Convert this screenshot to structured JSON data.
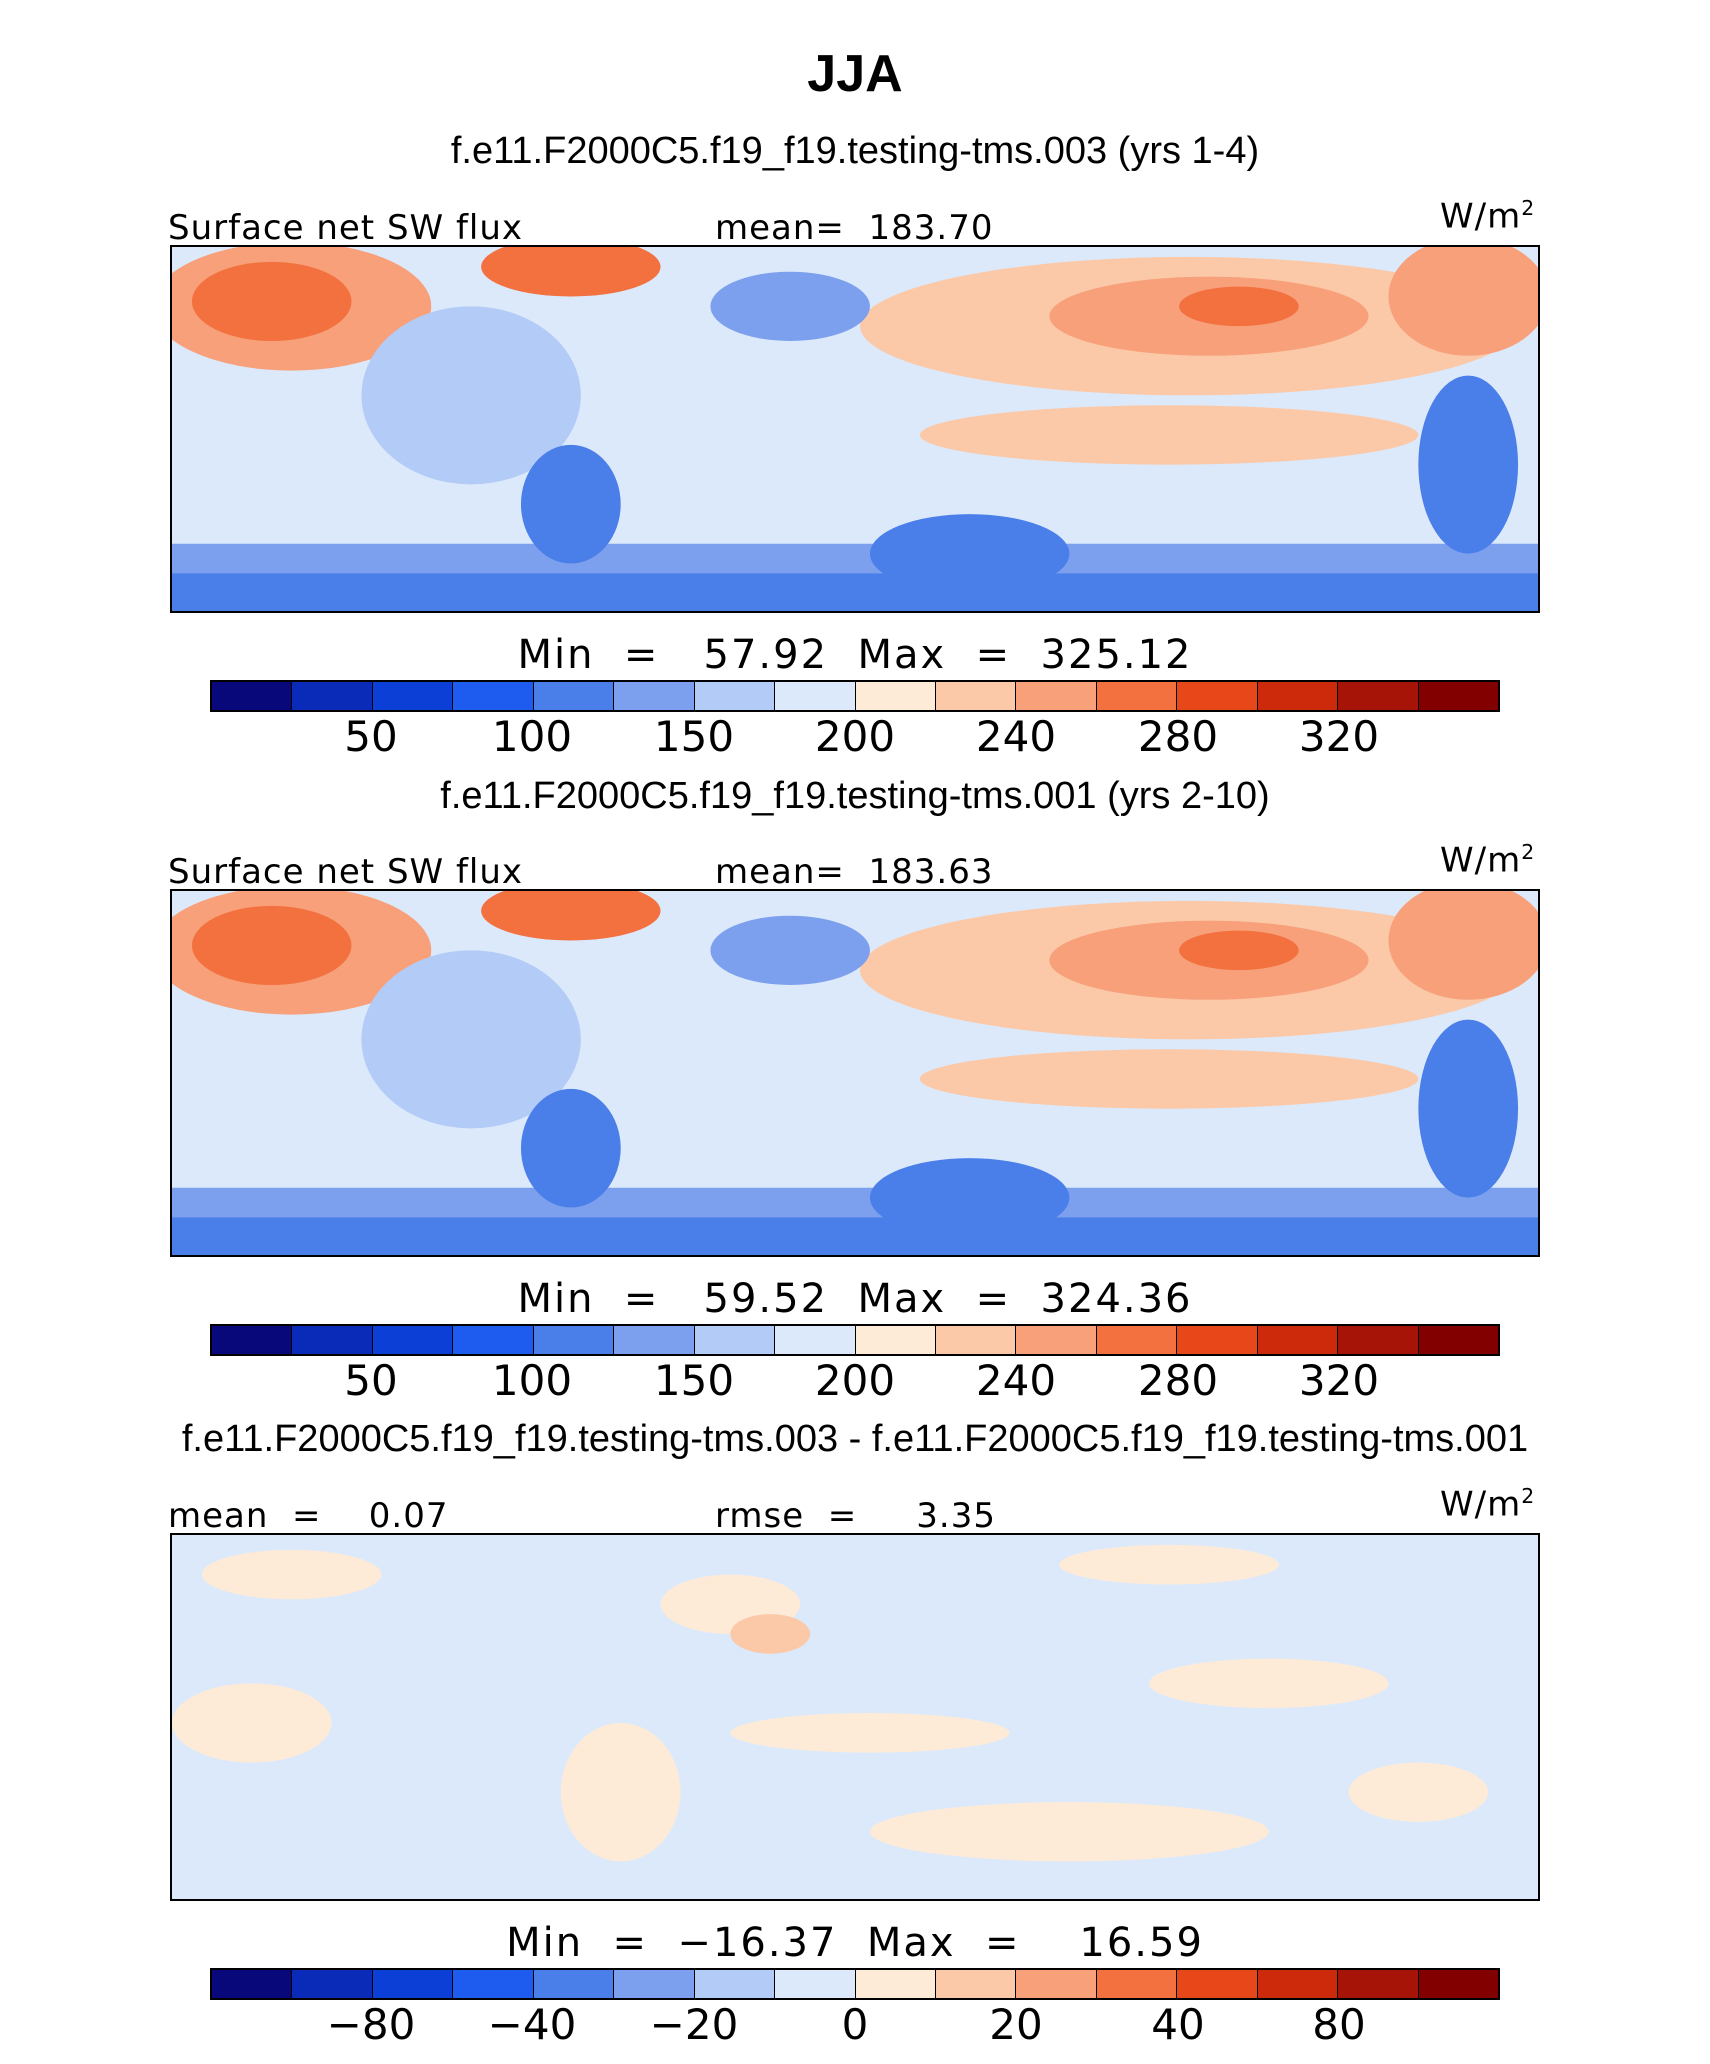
{
  "title": "JJA",
  "units_base": "W/m",
  "units_exp": "2",
  "panels": [
    {
      "case_title": "f.e11.F2000C5.f19_f19.testing-tms.003 (yrs 1-4)",
      "left_label": "Surface net SW flux",
      "center_label": "mean=  183.70",
      "minmax": "Min  =   57.92  Max  =  325.12",
      "ticks": [
        "50",
        "100",
        "150",
        "200",
        "240",
        "280",
        "320"
      ],
      "kind": "field"
    },
    {
      "case_title": "f.e11.F2000C5.f19_f19.testing-tms.001 (yrs 2-10)",
      "left_label": "Surface net SW flux",
      "center_label": "mean=  183.63",
      "minmax": "Min  =   59.52  Max  =  324.36",
      "ticks": [
        "50",
        "100",
        "150",
        "200",
        "240",
        "280",
        "320"
      ],
      "kind": "field"
    },
    {
      "case_title": "f.e11.F2000C5.f19_f19.testing-tms.003 - f.e11.F2000C5.f19_f19.testing-tms.001",
      "left_label": "mean  =    0.07",
      "center_label": "rmse  =     3.35",
      "minmax": "Min  =  −16.37  Max  =    16.59",
      "ticks": [
        "−80",
        "−40",
        "−20",
        "0",
        "20",
        "40",
        "80"
      ],
      "kind": "diff"
    }
  ],
  "colorbar_colors": [
    "#08087a",
    "#0a2ab8",
    "#0b3fd6",
    "#1e5cf0",
    "#4a7ee8",
    "#7da0ee",
    "#b3cbf7",
    "#dce9fb",
    "#fdebd8",
    "#fbc9a8",
    "#f7a07a",
    "#f3703f",
    "#e8471a",
    "#cc2a0a",
    "#a51406",
    "#820000"
  ]
}
